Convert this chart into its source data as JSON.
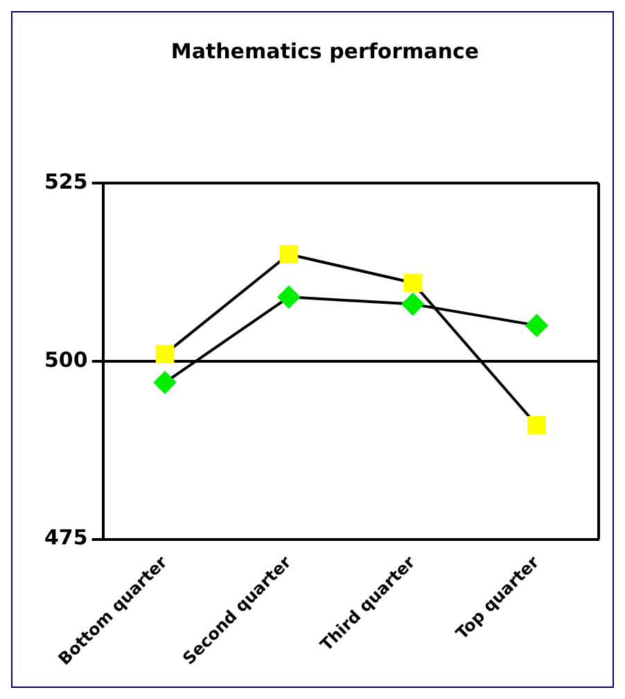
{
  "chart_data": {
    "type": "line",
    "title": "Mathematics performance",
    "categories": [
      "Bottom quarter",
      "Second quarter",
      "Third quarter",
      "Top quarter"
    ],
    "series": [
      {
        "color": "#00ee00",
        "marker": "diamond",
        "values": [
          497,
          509,
          508,
          505
        ]
      },
      {
        "color": "#ffff00",
        "marker": "square",
        "values": [
          501,
          515,
          511,
          491
        ]
      }
    ],
    "ylim": [
      475,
      525
    ],
    "yticks": [
      475,
      500,
      525
    ],
    "grid": "y",
    "line_style": "solid",
    "legend": false
  }
}
